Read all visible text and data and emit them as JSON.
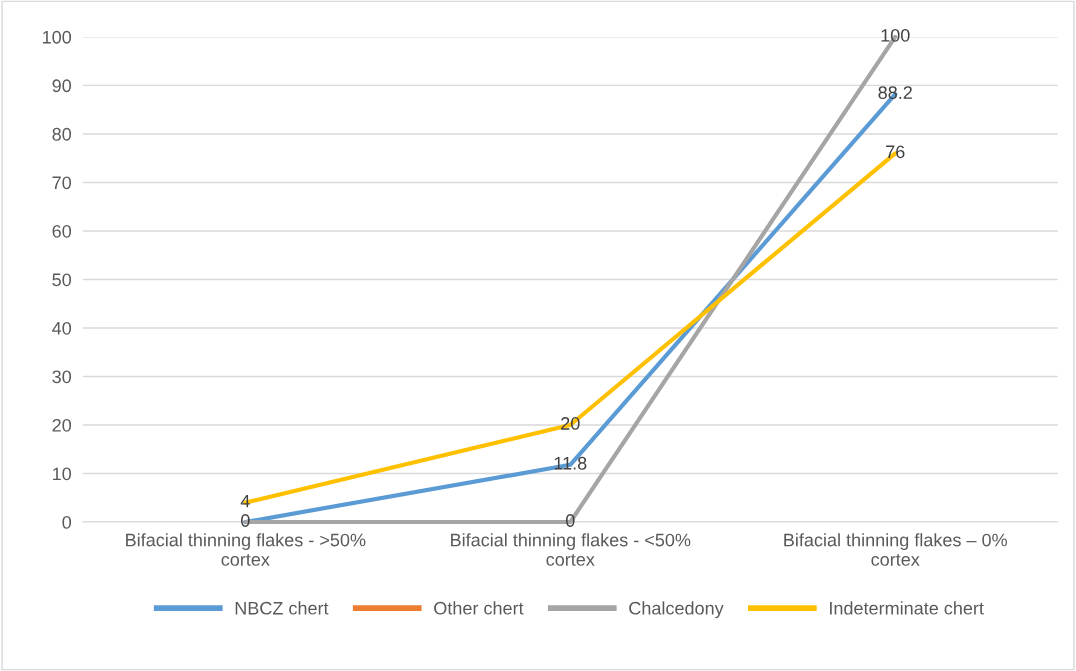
{
  "chart_data": {
    "type": "line",
    "categories": [
      "Bifacial thinning flakes - >50% cortex",
      "Bifacial thinning flakes - <50% cortex",
      "Bifacial thinning flakes – 0% cortex"
    ],
    "series": [
      {
        "name": "NBCZ chert",
        "color": "#5b9bd5",
        "values": [
          0,
          11.8,
          88.2
        ],
        "value_labels": [
          "0",
          "11.8",
          "88.2"
        ]
      },
      {
        "name": "Other chert",
        "color": "#ed7d31",
        "values": [
          null,
          null,
          null
        ]
      },
      {
        "name": "Chalcedony",
        "color": "#a5a5a5",
        "values": [
          0,
          0,
          100
        ],
        "value_labels": [
          null,
          "0",
          "100"
        ]
      },
      {
        "name": "Indeterminate chert",
        "color": "#ffc000",
        "values": [
          4,
          20,
          76
        ],
        "value_labels": [
          "4",
          "20",
          "76"
        ]
      }
    ],
    "ylim": [
      0,
      100
    ],
    "yticks": [
      0,
      10,
      20,
      30,
      40,
      50,
      60,
      70,
      80,
      90,
      100
    ],
    "grid": "y",
    "legend": "bottom",
    "marker": "none",
    "line_style": "solid"
  }
}
